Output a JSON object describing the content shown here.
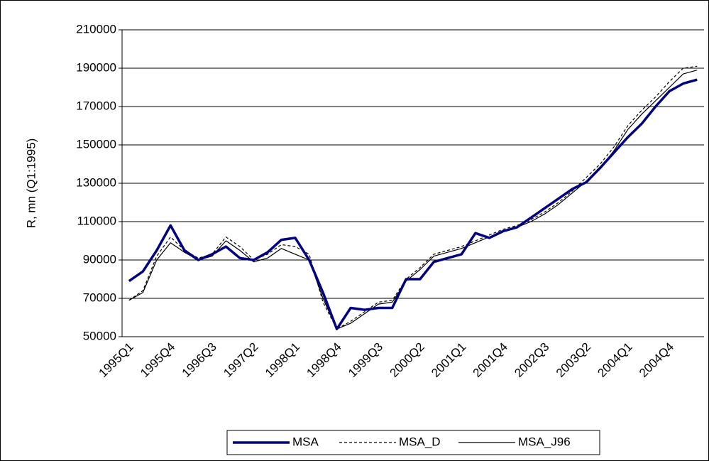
{
  "chart_data": {
    "type": "line",
    "y_label": "R, mn (Q1:1995)",
    "categories": [
      "1995Q1",
      null,
      null,
      "1995Q4",
      null,
      null,
      "1996Q3",
      null,
      null,
      "1997Q2",
      null,
      null,
      "1998Q1",
      null,
      null,
      "1998Q4",
      null,
      null,
      "1999Q3",
      null,
      null,
      "2000Q2",
      null,
      null,
      "2001Q1",
      null,
      null,
      "2001Q4",
      null,
      null,
      "2002Q3",
      null,
      null,
      "2003Q2",
      null,
      null,
      "2004Q1",
      null,
      null,
      "2004Q4",
      null,
      null
    ],
    "series": [
      {
        "name": "MSA",
        "color": "#000080",
        "dash": "solid",
        "values": [
          79000,
          84000,
          95000,
          108000,
          95000,
          90000,
          93000,
          97000,
          91000,
          90000,
          94000,
          100500,
          101500,
          90000,
          73000,
          54000,
          65000,
          64000,
          65000,
          65000,
          80000,
          80000,
          89000,
          91000,
          93000,
          104000,
          101500,
          105000,
          107000,
          112000,
          117000,
          122000,
          127000,
          130500,
          138000,
          146000,
          154000,
          161000,
          170000,
          178000,
          182000,
          184000
        ]
      },
      {
        "name": "MSA_D",
        "color": "#000000",
        "dash": "dotted",
        "values": [
          69000,
          74000,
          92000,
          102000,
          95000,
          91000,
          93000,
          102000,
          97000,
          90000,
          93000,
          98000,
          97000,
          93000,
          68000,
          54000,
          58000,
          63000,
          68000,
          69000,
          80000,
          86000,
          93000,
          95000,
          97000,
          100000,
          103000,
          106000,
          108000,
          111000,
          115000,
          120000,
          126000,
          133000,
          140000,
          149000,
          160000,
          168000,
          175000,
          183000,
          190000,
          191000
        ]
      },
      {
        "name": "MSA_J96",
        "color": "#000000",
        "dash": "solid",
        "values": [
          69000,
          73000,
          90000,
          99000,
          94000,
          90000,
          92000,
          100000,
          95000,
          89000,
          91000,
          96000,
          93000,
          90000,
          70000,
          54000,
          57000,
          62000,
          67000,
          68000,
          79000,
          85000,
          92000,
          94000,
          96000,
          99000,
          102000,
          105000,
          107000,
          110000,
          114000,
          119000,
          125000,
          131000,
          138000,
          147000,
          158000,
          166000,
          173000,
          180000,
          187000,
          189000
        ]
      }
    ],
    "ylim": [
      50000,
      210000
    ],
    "yticks": [
      50000,
      70000,
      90000,
      110000,
      130000,
      150000,
      170000,
      190000,
      210000
    ],
    "grid": true,
    "legend": "bottom"
  }
}
